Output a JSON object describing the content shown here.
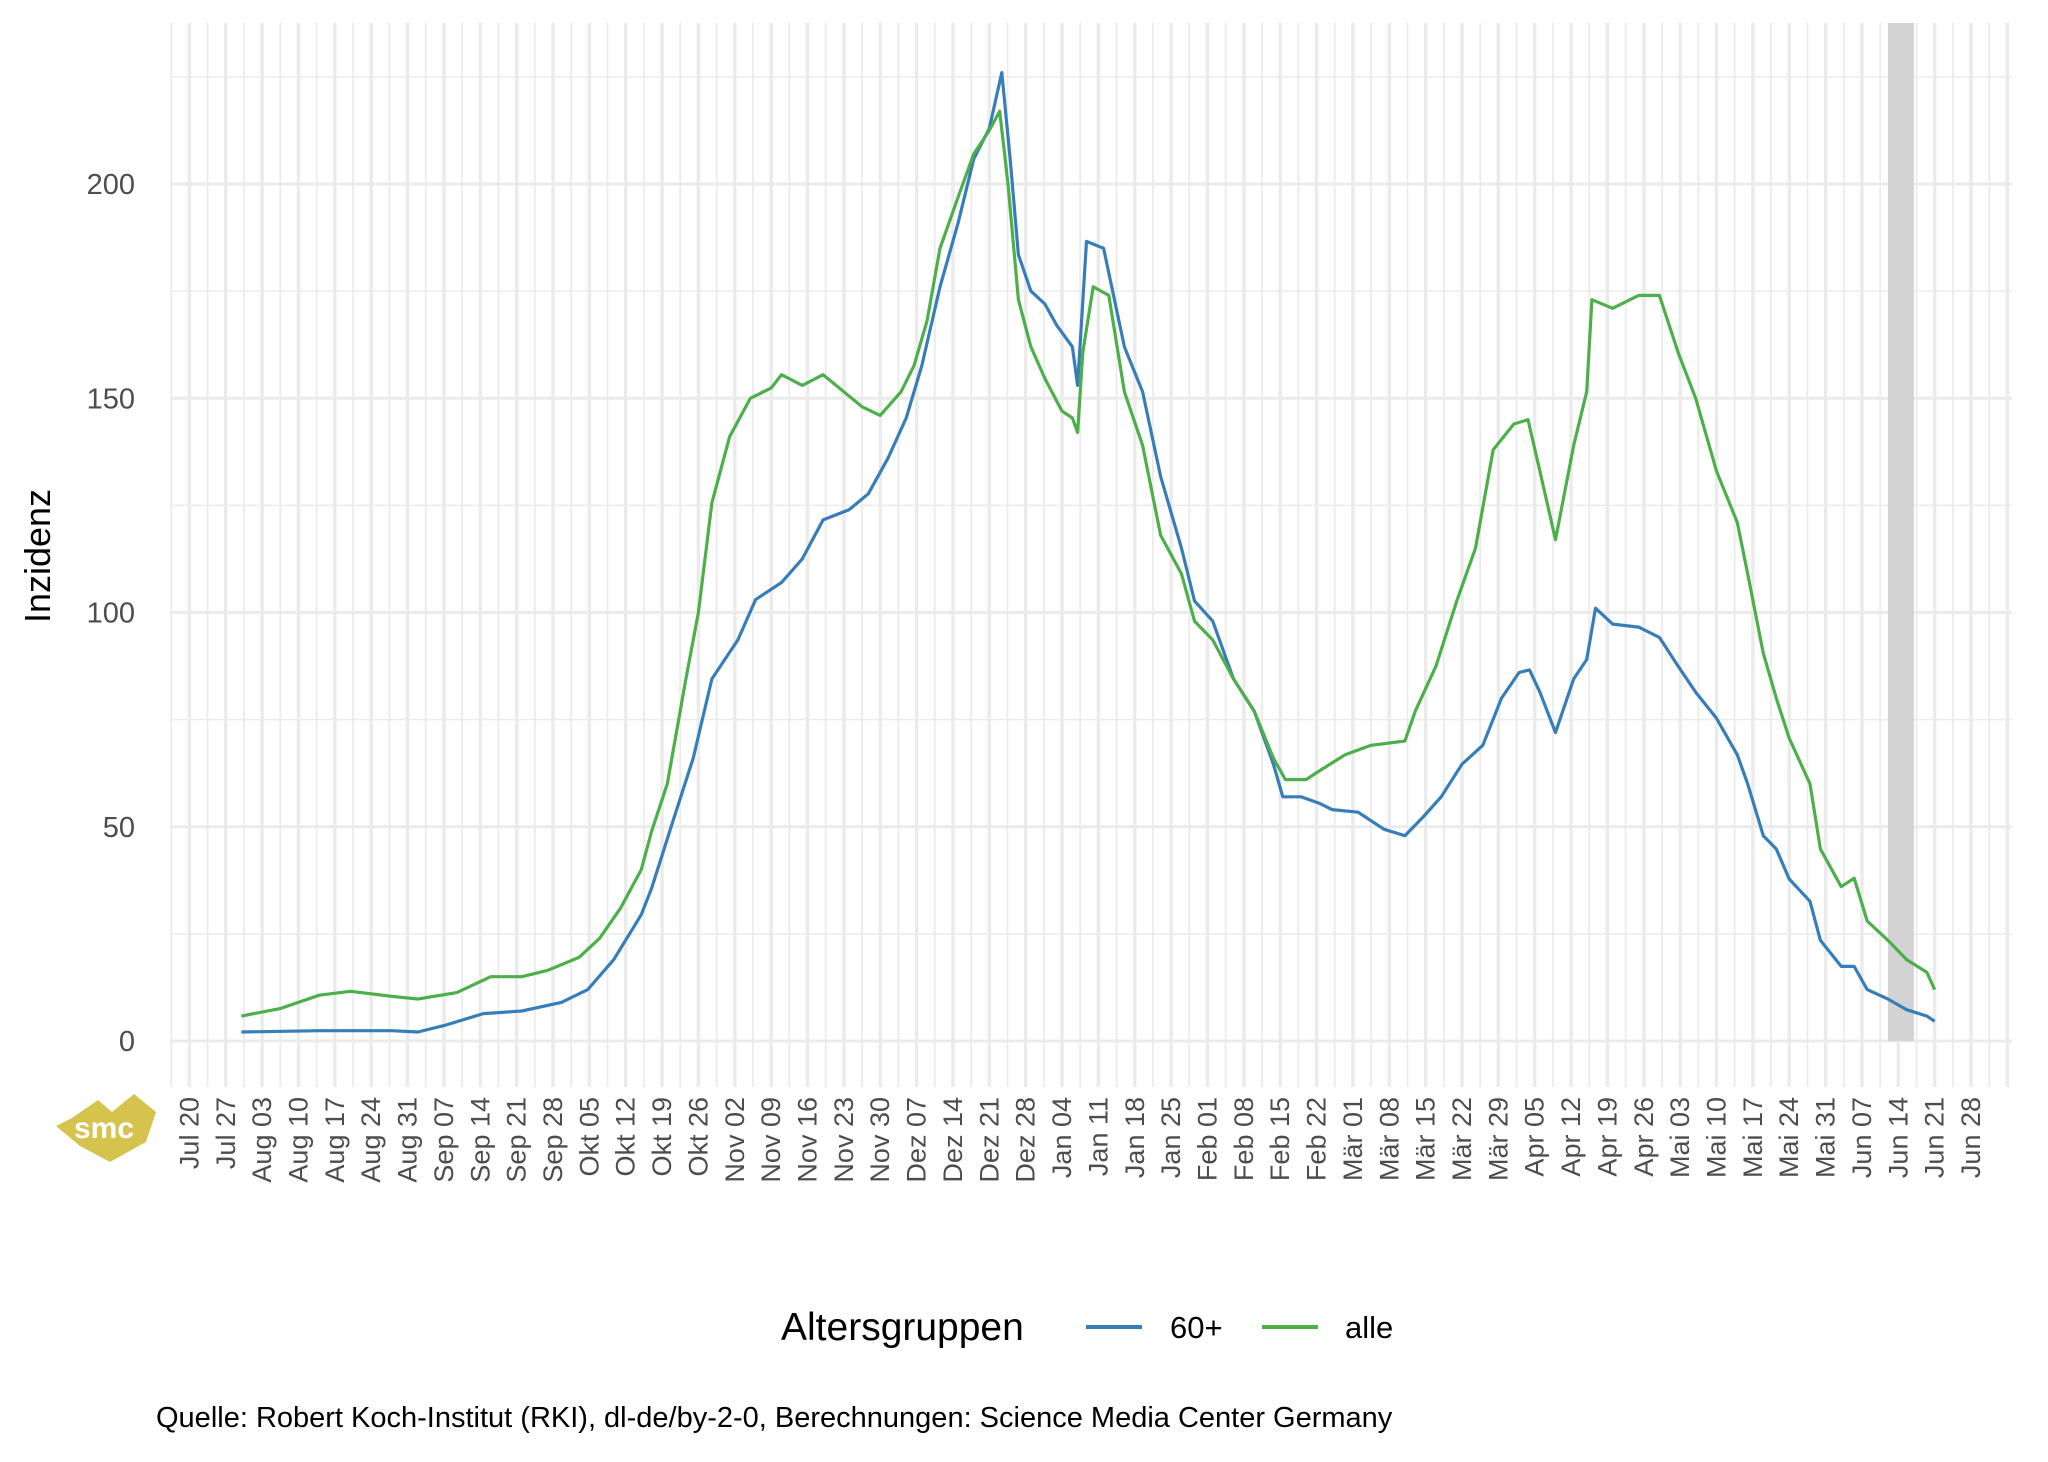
{
  "chart_data": {
    "type": "line",
    "title": "",
    "xlabel": "",
    "ylabel": "Inzidenz",
    "ylim": [
      0,
      237
    ],
    "yticks": [
      0,
      50,
      100,
      150,
      200
    ],
    "x_origin": "2020-07-20",
    "x_unit": "days",
    "xlim": [
      -2,
      348
    ],
    "xtick_labels": [
      "Jul 20",
      "Jul 27",
      "Aug 03",
      "Aug 10",
      "Aug 17",
      "Aug 24",
      "Aug 31",
      "Sep 07",
      "Sep 14",
      "Sep 21",
      "Sep 28",
      "Okt 05",
      "Okt 12",
      "Okt 19",
      "Okt 26",
      "Nov 02",
      "Nov 09",
      "Nov 16",
      "Nov 23",
      "Nov 30",
      "Dez 07",
      "Dez 14",
      "Dez 21",
      "Dez 28",
      "Jan 04",
      "Jan 11",
      "Jan 18",
      "Jan 25",
      "Feb 01",
      "Feb 08",
      "Feb 15",
      "Feb 22",
      "Mär 01",
      "Mär 08",
      "Mär 15",
      "Mär 22",
      "Mär 29",
      "Apr 05",
      "Apr 12",
      "Apr 19",
      "Apr 26",
      "Mai 03",
      "Mai 10",
      "Mai 17",
      "Mai 24",
      "Mai 31",
      "Jun 07",
      "Jun 14",
      "Jun 21",
      "Jun 28"
    ],
    "grid": true,
    "shaded_region": [
      327,
      332
    ],
    "legend": {
      "title": "Altersgruppen",
      "position": "bottom"
    },
    "series": [
      {
        "name": "60+",
        "color": "#377EB8",
        "points": [
          [
            10,
            2.1
          ],
          [
            25,
            2.4
          ],
          [
            39,
            2.4
          ],
          [
            44,
            2.1
          ],
          [
            49,
            3.6
          ],
          [
            56.6,
            6.4
          ],
          [
            64,
            7
          ],
          [
            71.6,
            9
          ],
          [
            76.7,
            12
          ],
          [
            81.7,
            19
          ],
          [
            87,
            29.5
          ],
          [
            89,
            35.7
          ],
          [
            93,
            51
          ],
          [
            97,
            66
          ],
          [
            100.6,
            84.5
          ],
          [
            105.6,
            93.6
          ],
          [
            109,
            103
          ],
          [
            114,
            107
          ],
          [
            118,
            112.5
          ],
          [
            122,
            121.6
          ],
          [
            127,
            124
          ],
          [
            130.7,
            127.7
          ],
          [
            134.5,
            136
          ],
          [
            138,
            145.4
          ],
          [
            141,
            157.6
          ],
          [
            144.5,
            176
          ],
          [
            148,
            191
          ],
          [
            151,
            205.8
          ],
          [
            154,
            213
          ],
          [
            156.4,
            226
          ],
          [
            158,
            206
          ],
          [
            159.6,
            183.5
          ],
          [
            162,
            175
          ],
          [
            164.7,
            172
          ],
          [
            167,
            167
          ],
          [
            170,
            162
          ],
          [
            171,
            153
          ],
          [
            172.7,
            186.6
          ],
          [
            176,
            185
          ],
          [
            180,
            162
          ],
          [
            183.5,
            151.5
          ],
          [
            187,
            131.7
          ],
          [
            191,
            115
          ],
          [
            193.5,
            102.7
          ],
          [
            197,
            98
          ],
          [
            201,
            84.5
          ],
          [
            205,
            77
          ],
          [
            208.7,
            64.6
          ],
          [
            210.5,
            57
          ],
          [
            214,
            57
          ],
          [
            217.5,
            55.5
          ],
          [
            220,
            54
          ],
          [
            225,
            53.4
          ],
          [
            230,
            49.4
          ],
          [
            234,
            47.9
          ],
          [
            237.6,
            52.4
          ],
          [
            241,
            57
          ],
          [
            245,
            64.6
          ],
          [
            249,
            69
          ],
          [
            252.6,
            80
          ],
          [
            256,
            86
          ],
          [
            258,
            86.6
          ],
          [
            260,
            81.4
          ],
          [
            263,
            72
          ],
          [
            266.5,
            84.5
          ],
          [
            269,
            89
          ],
          [
            270.7,
            101
          ],
          [
            274,
            97.3
          ],
          [
            279,
            96.6
          ],
          [
            283,
            94.2
          ],
          [
            286.6,
            87.5
          ],
          [
            290,
            81.4
          ],
          [
            294,
            75.3
          ],
          [
            298,
            66.8
          ],
          [
            300,
            60
          ],
          [
            303,
            47.9
          ],
          [
            305.5,
            44.8
          ],
          [
            308,
            37.8
          ],
          [
            312,
            32.6
          ],
          [
            314,
            23.5
          ],
          [
            318,
            17.4
          ],
          [
            320.5,
            17.4
          ],
          [
            323,
            12
          ],
          [
            327,
            9.8
          ],
          [
            330.6,
            7.3
          ],
          [
            334.5,
            5.8
          ],
          [
            336,
            4.6
          ]
        ]
      },
      {
        "name": "alle",
        "color": "#4DAF4A",
        "points": [
          [
            10,
            5.8
          ],
          [
            17.6,
            7.6
          ],
          [
            25,
            10.7
          ],
          [
            31,
            11.6
          ],
          [
            39,
            10.4
          ],
          [
            44,
            9.8
          ],
          [
            51.5,
            11.3
          ],
          [
            58,
            15
          ],
          [
            64,
            15
          ],
          [
            69,
            16.5
          ],
          [
            75,
            19.5
          ],
          [
            79,
            24
          ],
          [
            83,
            31
          ],
          [
            87,
            40
          ],
          [
            89,
            49
          ],
          [
            92,
            60
          ],
          [
            95.5,
            84
          ],
          [
            98,
            100
          ],
          [
            100.6,
            125.6
          ],
          [
            104,
            141
          ],
          [
            108,
            150
          ],
          [
            112,
            152.4
          ],
          [
            114,
            155.5
          ],
          [
            118,
            153
          ],
          [
            122,
            155.5
          ],
          [
            126,
            151.5
          ],
          [
            129.5,
            148
          ],
          [
            133,
            146
          ],
          [
            137,
            151.5
          ],
          [
            139.5,
            157.6
          ],
          [
            142,
            168
          ],
          [
            144.5,
            185
          ],
          [
            148,
            197
          ],
          [
            151,
            207
          ],
          [
            154,
            212.5
          ],
          [
            156,
            217
          ],
          [
            157.6,
            200
          ],
          [
            159.6,
            173
          ],
          [
            162,
            162
          ],
          [
            164.7,
            154.6
          ],
          [
            168,
            147
          ],
          [
            170,
            145.4
          ],
          [
            171,
            142
          ],
          [
            172,
            160.7
          ],
          [
            174,
            176
          ],
          [
            177,
            174
          ],
          [
            180,
            151.5
          ],
          [
            183.5,
            139
          ],
          [
            187,
            118
          ],
          [
            191,
            109
          ],
          [
            193.5,
            98
          ],
          [
            197,
            93.6
          ],
          [
            201,
            84.5
          ],
          [
            205,
            77
          ],
          [
            208.7,
            66
          ],
          [
            211,
            61
          ],
          [
            215,
            61
          ],
          [
            217.5,
            63
          ],
          [
            222.5,
            66.8
          ],
          [
            227.5,
            69
          ],
          [
            234,
            70
          ],
          [
            236,
            77
          ],
          [
            240,
            87.5
          ],
          [
            244,
            102.7
          ],
          [
            247.6,
            115
          ],
          [
            251,
            138
          ],
          [
            255,
            144
          ],
          [
            257.7,
            145
          ],
          [
            260,
            133
          ],
          [
            263,
            117
          ],
          [
            266.5,
            139
          ],
          [
            269,
            151.5
          ],
          [
            270,
            173
          ],
          [
            274,
            171
          ],
          [
            279,
            174
          ],
          [
            283,
            174
          ],
          [
            286.6,
            160.7
          ],
          [
            290,
            150
          ],
          [
            294,
            133
          ],
          [
            298,
            121
          ],
          [
            300,
            109
          ],
          [
            303,
            90.5
          ],
          [
            305.5,
            80
          ],
          [
            308,
            70.7
          ],
          [
            312,
            60
          ],
          [
            314,
            44.8
          ],
          [
            318,
            36
          ],
          [
            320.5,
            38
          ],
          [
            323,
            28
          ],
          [
            327,
            23.5
          ],
          [
            330.6,
            19
          ],
          [
            334.5,
            16
          ],
          [
            336,
            12
          ]
        ]
      }
    ]
  },
  "caption": "Quelle: Robert Koch-Institut (RKI), dl-de/by-2-0, Berechnungen: Science Media Center Germany",
  "logo": {
    "text": "smc",
    "color": "#D6C34E"
  }
}
